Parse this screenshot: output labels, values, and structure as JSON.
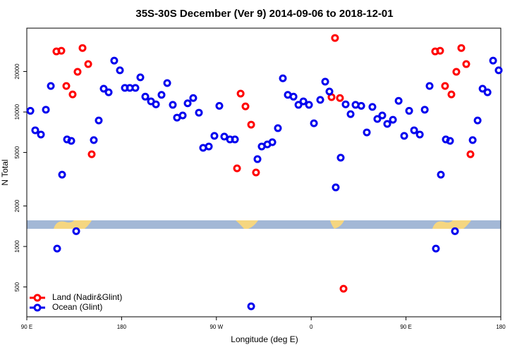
{
  "chart_data": {
    "type": "scatter",
    "title": "35S-30S December (Ver 9)   2014-09-06 to 2018-12-01",
    "x_label": "Longitude (deg E)",
    "y_label": "N Total",
    "xlim": [
      90,
      540
    ],
    "xticks": [
      {
        "value": 90,
        "label": "90 E"
      },
      180,
      {
        "value": 270,
        "label": "90 W"
      },
      {
        "value": 360,
        "label": "0"
      },
      {
        "value": 450,
        "label": "90 E"
      },
      {
        "value": 540,
        "label": "180"
      }
    ],
    "ylim": [
      300,
      42000
    ],
    "y_log": true,
    "yticks": [
      500,
      1000,
      2000,
      5000,
      10000,
      20000
    ],
    "legend_position": "bottom-left",
    "series": [
      {
        "name": "Land (Nadir&Glint)",
        "color": "#ff0000",
        "x": [
          118.1,
          122.8,
          127.5,
          133.5,
          138.2,
          142.9,
          148.3,
          151.6,
          293.0,
          297.6,
          303.0,
          289.6,
          307.6,
          382.6,
          379.3,
          387.3,
          390.7,
          477.7,
          482.4,
          487.1,
          493.1,
          497.8,
          502.5,
          507.2,
          511.2
        ],
        "values": [
          28200,
          28500,
          15600,
          13500,
          19900,
          29900,
          22700,
          4850,
          13700,
          11000,
          8050,
          3810,
          3550,
          35500,
          12900,
          12700,
          485,
          28200,
          28500,
          15600,
          13500,
          19900,
          29900,
          22700,
          4850
        ]
      },
      {
        "name": "Ocean (Glint)",
        "color": "#0000ee",
        "x": [
          93.4,
          98.0,
          103.4,
          108.1,
          112.8,
          118.8,
          123.5,
          128.2,
          132.2,
          136.9,
          153.6,
          158.3,
          163.0,
          167.7,
          173.0,
          178.4,
          183.1,
          187.8,
          193.1,
          197.8,
          202.5,
          207.9,
          212.6,
          217.9,
          223.3,
          228.6,
          232.6,
          238.0,
          242.7,
          248.0,
          253.4,
          257.4,
          262.8,
          268.1,
          272.8,
          277.5,
          282.9,
          287.6,
          303.0,
          309.0,
          313.0,
          318.4,
          323.1,
          328.4,
          333.1,
          337.8,
          343.2,
          347.9,
          352.6,
          357.9,
          362.6,
          368.6,
          373.3,
          377.3,
          383.3,
          388.0,
          392.7,
          397.4,
          402.1,
          407.5,
          412.8,
          418.1,
          422.8,
          427.5,
          432.2,
          437.6,
          443.0,
          448.3,
          453.0,
          457.7,
          463.1,
          467.8,
          472.4,
          478.4,
          483.1,
          487.8,
          491.8,
          496.5,
          513.3,
          518.0,
          522.7,
          527.4,
          532.7,
          538.0
        ],
        "values": [
          10200,
          7310,
          6800,
          10400,
          15600,
          964,
          3420,
          6250,
          6100,
          1300,
          6180,
          8650,
          14900,
          14000,
          24100,
          20400,
          15100,
          15100,
          15100,
          18100,
          13000,
          12000,
          11400,
          13400,
          16400,
          11300,
          9080,
          9420,
          11600,
          12700,
          9880,
          5410,
          5540,
          6640,
          11100,
          6560,
          6250,
          6250,
          359,
          4460,
          5540,
          5740,
          5960,
          7580,
          17800,
          13400,
          13000,
          11300,
          12000,
          11300,
          8240,
          12300,
          16800,
          14200,
          2750,
          4570,
          11400,
          9640,
          11300,
          11100,
          7050,
          10900,
          8870,
          9420,
          8150,
          8750,
          12100,
          6640,
          10200,
          7310,
          6800,
          10400,
          15600,
          964,
          3420,
          6250,
          6100,
          1300,
          6180,
          8650,
          14900,
          14000,
          24100,
          20400
        ]
      }
    ]
  }
}
